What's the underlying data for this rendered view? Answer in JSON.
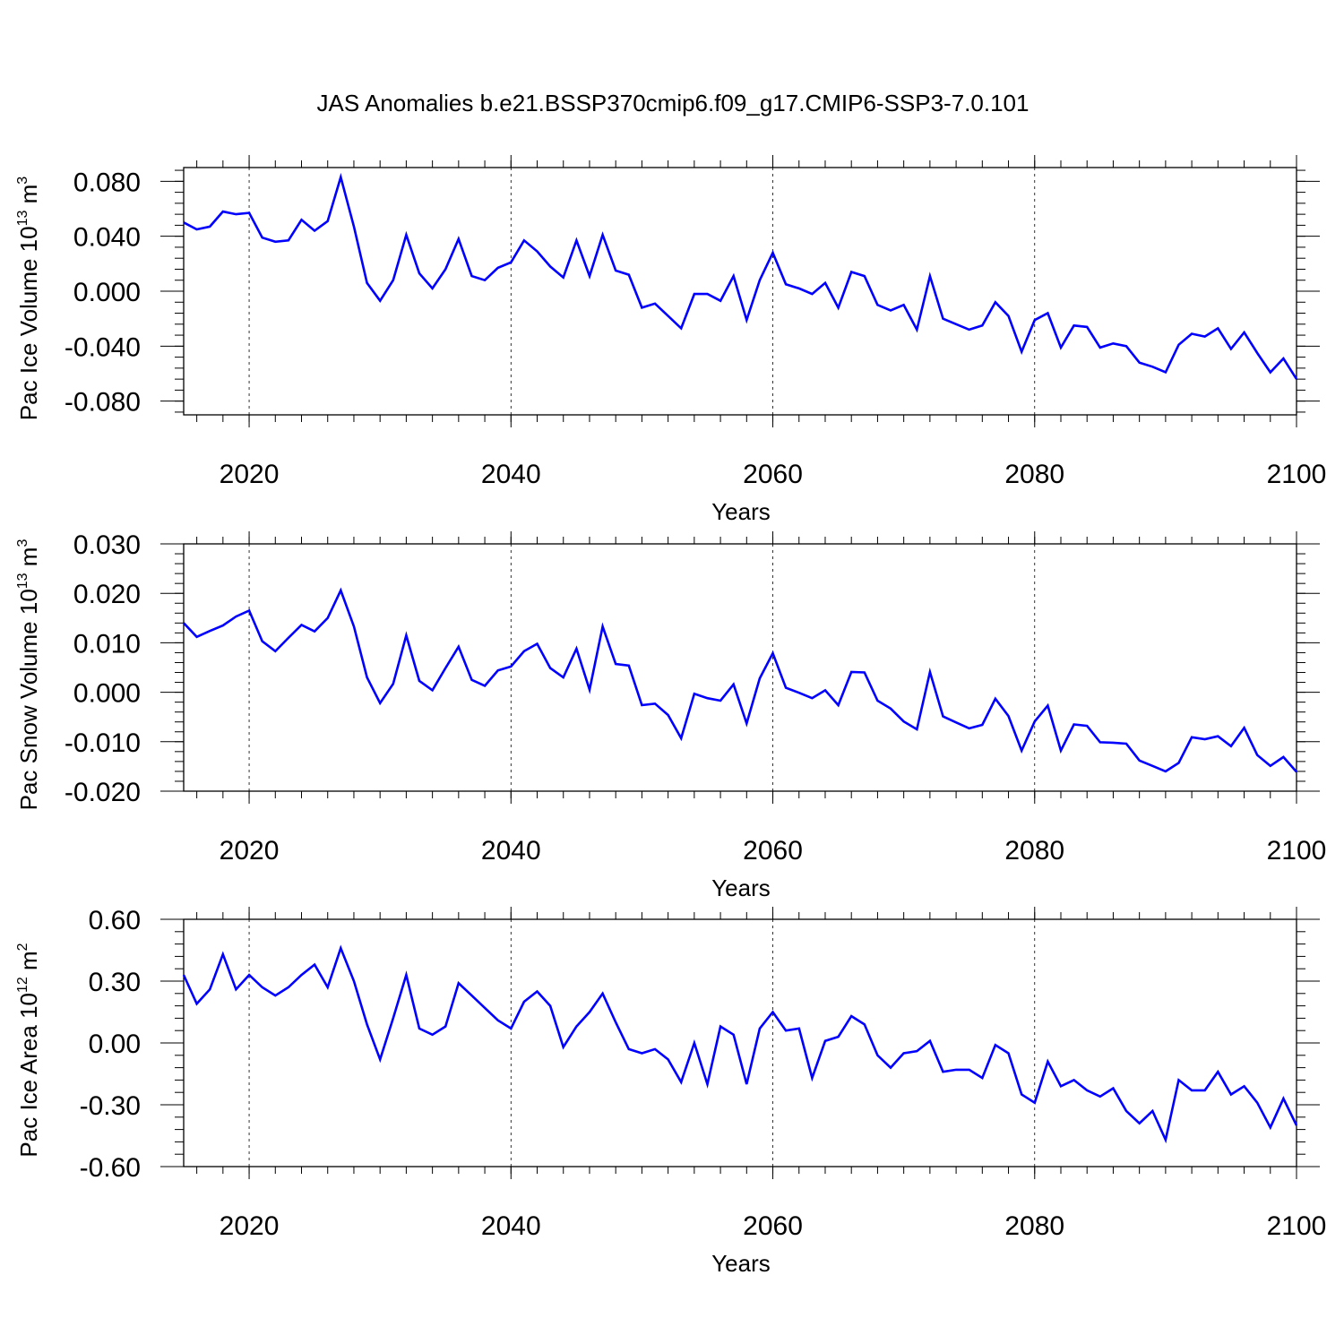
{
  "title": "JAS Anomalies b.e21.BSSP370cmip6.f09_g17.CMIP6-SSP3-7.0.101",
  "line_color": "#0000ff",
  "chart_data": [
    {
      "type": "line",
      "name": "ice-volume",
      "xlabel": "Years",
      "ylabel_parts": {
        "prefix": "Pac Ice Volume 10",
        "exp": "13",
        "unit": " m",
        "unit_exp": "3"
      },
      "xlim": [
        2015,
        2100
      ],
      "ylim": [
        -0.09,
        0.09
      ],
      "xticks": [
        2020,
        2040,
        2060,
        2080,
        2100
      ],
      "xtick_labels": [
        "2020",
        "2040",
        "2060",
        "2080",
        "2100"
      ],
      "yticks": [
        -0.08,
        -0.04,
        0.0,
        0.04,
        0.08
      ],
      "ytick_labels": [
        "-0.080",
        "-0.040",
        "0.000",
        "0.040",
        "0.080"
      ],
      "x_start": 2015,
      "values": [
        0.05,
        0.045,
        0.047,
        0.058,
        0.056,
        0.057,
        0.039,
        0.036,
        0.037,
        0.052,
        0.044,
        0.051,
        0.083,
        0.047,
        0.006,
        -0.007,
        0.008,
        0.041,
        0.013,
        0.002,
        0.016,
        0.038,
        0.011,
        0.008,
        0.017,
        0.021,
        0.037,
        0.029,
        0.018,
        0.01,
        0.037,
        0.011,
        0.041,
        0.015,
        0.012,
        -0.012,
        -0.009,
        -0.018,
        -0.027,
        -0.002,
        -0.002,
        -0.007,
        0.011,
        -0.021,
        0.008,
        0.028,
        0.005,
        0.002,
        -0.002,
        0.006,
        -0.012,
        0.014,
        0.011,
        -0.01,
        -0.014,
        -0.01,
        -0.028,
        0.011,
        -0.02,
        -0.024,
        -0.028,
        -0.025,
        -0.008,
        -0.018,
        -0.044,
        -0.021,
        -0.016,
        -0.041,
        -0.025,
        -0.026,
        -0.041,
        -0.038,
        -0.04,
        -0.052,
        -0.055,
        -0.059,
        -0.039,
        -0.031,
        -0.033,
        -0.027,
        -0.042,
        -0.03,
        -0.045,
        -0.059,
        -0.049,
        -0.064
      ]
    },
    {
      "type": "line",
      "name": "snow-volume",
      "xlabel": "Years",
      "ylabel_parts": {
        "prefix": "Pac Snow Volume 10",
        "exp": "13",
        "unit": " m",
        "unit_exp": "3"
      },
      "xlim": [
        2015,
        2100
      ],
      "ylim": [
        -0.02,
        0.03
      ],
      "xticks": [
        2020,
        2040,
        2060,
        2080,
        2100
      ],
      "xtick_labels": [
        "2020",
        "2040",
        "2060",
        "2080",
        "2100"
      ],
      "yticks": [
        -0.02,
        -0.01,
        0.0,
        0.01,
        0.02,
        0.03
      ],
      "ytick_labels": [
        "-0.020",
        "-0.010",
        "0.000",
        "0.010",
        "0.020",
        "0.030"
      ],
      "x_start": 2015,
      "values": [
        0.014,
        0.0112,
        0.0124,
        0.0135,
        0.0153,
        0.0165,
        0.0103,
        0.0083,
        0.011,
        0.0136,
        0.0123,
        0.015,
        0.0206,
        0.0133,
        0.003,
        -0.0022,
        0.0017,
        0.0115,
        0.0023,
        0.0004,
        0.0049,
        0.0092,
        0.0025,
        0.0013,
        0.0044,
        0.0052,
        0.0083,
        0.0098,
        0.0049,
        0.003,
        0.0088,
        0.0005,
        0.0133,
        0.0057,
        0.0054,
        -0.0026,
        -0.0023,
        -0.0046,
        -0.0093,
        -0.0003,
        -0.0012,
        -0.0017,
        0.0016,
        -0.0063,
        0.0028,
        0.0079,
        0.0009,
        -0.0001,
        -0.0012,
        0.0004,
        -0.0026,
        0.0041,
        0.004,
        -0.0017,
        -0.0033,
        -0.0059,
        -0.0075,
        0.0041,
        -0.0049,
        -0.0061,
        -0.0073,
        -0.0066,
        -0.0013,
        -0.0048,
        -0.0118,
        -0.0059,
        -0.0027,
        -0.0118,
        -0.0065,
        -0.0068,
        -0.0101,
        -0.0102,
        -0.0104,
        -0.0138,
        -0.0149,
        -0.016,
        -0.0143,
        -0.0091,
        -0.0095,
        -0.0089,
        -0.0109,
        -0.0072,
        -0.0127,
        -0.0149,
        -0.0131,
        -0.0161
      ]
    },
    {
      "type": "line",
      "name": "ice-area",
      "xlabel": "Years",
      "ylabel_parts": {
        "prefix": "Pac Ice Area 10",
        "exp": "12",
        "unit": " m",
        "unit_exp": "2"
      },
      "xlim": [
        2015,
        2100
      ],
      "ylim": [
        -0.6,
        0.6
      ],
      "xticks": [
        2020,
        2040,
        2060,
        2080,
        2100
      ],
      "xtick_labels": [
        "2020",
        "2040",
        "2060",
        "2080",
        "2100"
      ],
      "yticks": [
        -0.6,
        -0.3,
        0.0,
        0.3,
        0.6
      ],
      "ytick_labels": [
        "-0.60",
        "-0.30",
        "0.00",
        "0.30",
        "0.60"
      ],
      "x_start": 2015,
      "values": [
        0.33,
        0.19,
        0.26,
        0.43,
        0.26,
        0.33,
        0.27,
        0.23,
        0.27,
        0.33,
        0.38,
        0.27,
        0.46,
        0.3,
        0.09,
        -0.08,
        0.12,
        0.33,
        0.07,
        0.04,
        0.08,
        0.29,
        0.23,
        0.17,
        0.11,
        0.07,
        0.2,
        0.25,
        0.18,
        -0.02,
        0.08,
        0.15,
        0.24,
        0.1,
        -0.03,
        -0.05,
        -0.03,
        -0.08,
        -0.19,
        0.0,
        -0.2,
        0.08,
        0.04,
        -0.2,
        0.07,
        0.15,
        0.06,
        0.07,
        -0.17,
        0.01,
        0.03,
        0.13,
        0.09,
        -0.06,
        -0.12,
        -0.05,
        -0.04,
        0.01,
        -0.14,
        -0.13,
        -0.13,
        -0.17,
        -0.01,
        -0.05,
        -0.25,
        -0.29,
        -0.09,
        -0.21,
        -0.18,
        -0.23,
        -0.26,
        -0.22,
        -0.33,
        -0.39,
        -0.33,
        -0.47,
        -0.18,
        -0.23,
        -0.23,
        -0.14,
        -0.25,
        -0.21,
        -0.29,
        -0.41,
        -0.27,
        -0.4
      ]
    }
  ]
}
